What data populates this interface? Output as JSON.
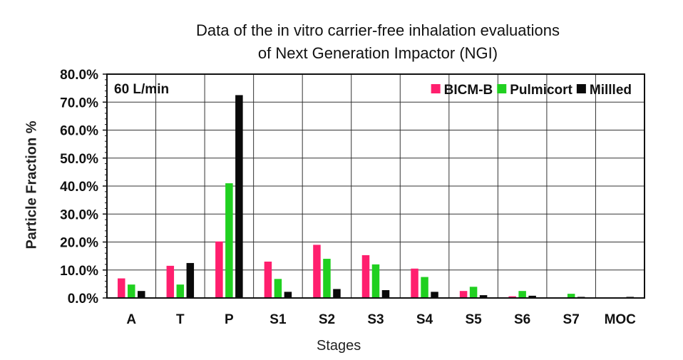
{
  "chart_data": {
    "type": "bar",
    "title": "Data of the in vitro carrier-free inhalation evaluations",
    "subtitle": "of Next Generation Impactor (NGI)",
    "xlabel": "Stages",
    "ylabel": "Particle Fraction %",
    "annotation": "60 L/min",
    "legend_position": "top-right",
    "grid": true,
    "ylim": [
      0,
      80
    ],
    "yticks": [
      "0.0%",
      "10.0%",
      "20.0%",
      "30.0%",
      "40.0%",
      "50.0%",
      "60.0%",
      "70.0%",
      "80.0%"
    ],
    "categories": [
      "A",
      "T",
      "P",
      "S1",
      "S2",
      "S3",
      "S4",
      "S5",
      "S6",
      "S7",
      "MOC"
    ],
    "series": [
      {
        "name": "BICM-B",
        "color": "#ff1f6e",
        "values": [
          7.0,
          11.5,
          20.2,
          13.0,
          19.0,
          15.3,
          10.5,
          2.5,
          0.6,
          0.1,
          0.0
        ]
      },
      {
        "name": "Pulmicort",
        "color": "#20d020",
        "values": [
          4.8,
          4.8,
          41.0,
          6.8,
          14.0,
          12.0,
          7.5,
          4.0,
          2.5,
          1.5,
          0.2
        ]
      },
      {
        "name": "Millled",
        "color": "#0a0a0a",
        "values": [
          2.5,
          12.5,
          72.5,
          2.2,
          3.2,
          2.8,
          2.2,
          1.0,
          0.8,
          0.4,
          0.4
        ]
      }
    ]
  }
}
